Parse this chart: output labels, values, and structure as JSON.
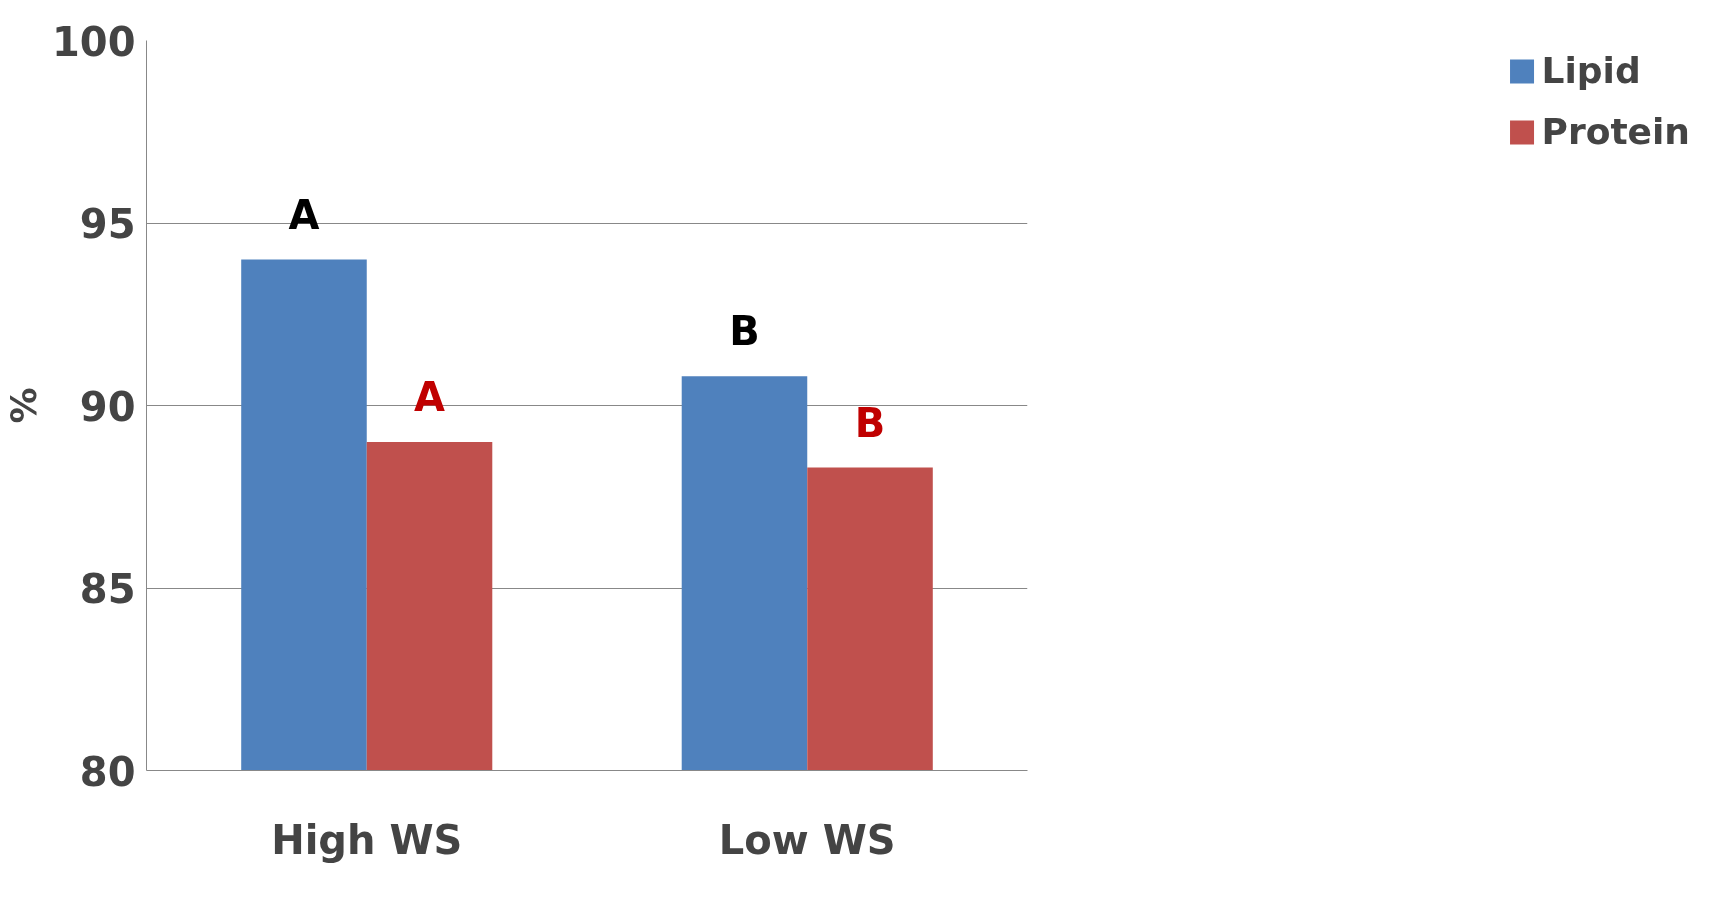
{
  "chart_data": {
    "type": "bar",
    "ylabel": "%",
    "categories": [
      "High WS",
      "Low WS"
    ],
    "series": [
      {
        "name": "Lipid",
        "color": "#4f81bd",
        "values": [
          94.0,
          90.8
        ],
        "value_labels": [
          "A",
          "B"
        ]
      },
      {
        "name": "Protein",
        "color": "#c0504d",
        "values": [
          89.0,
          88.3
        ],
        "value_labels": [
          "A",
          "B"
        ]
      }
    ],
    "ylim": [
      80,
      100
    ],
    "yticks": [
      80,
      85,
      90,
      95,
      100
    ],
    "grid": "y",
    "legend": "right"
  }
}
